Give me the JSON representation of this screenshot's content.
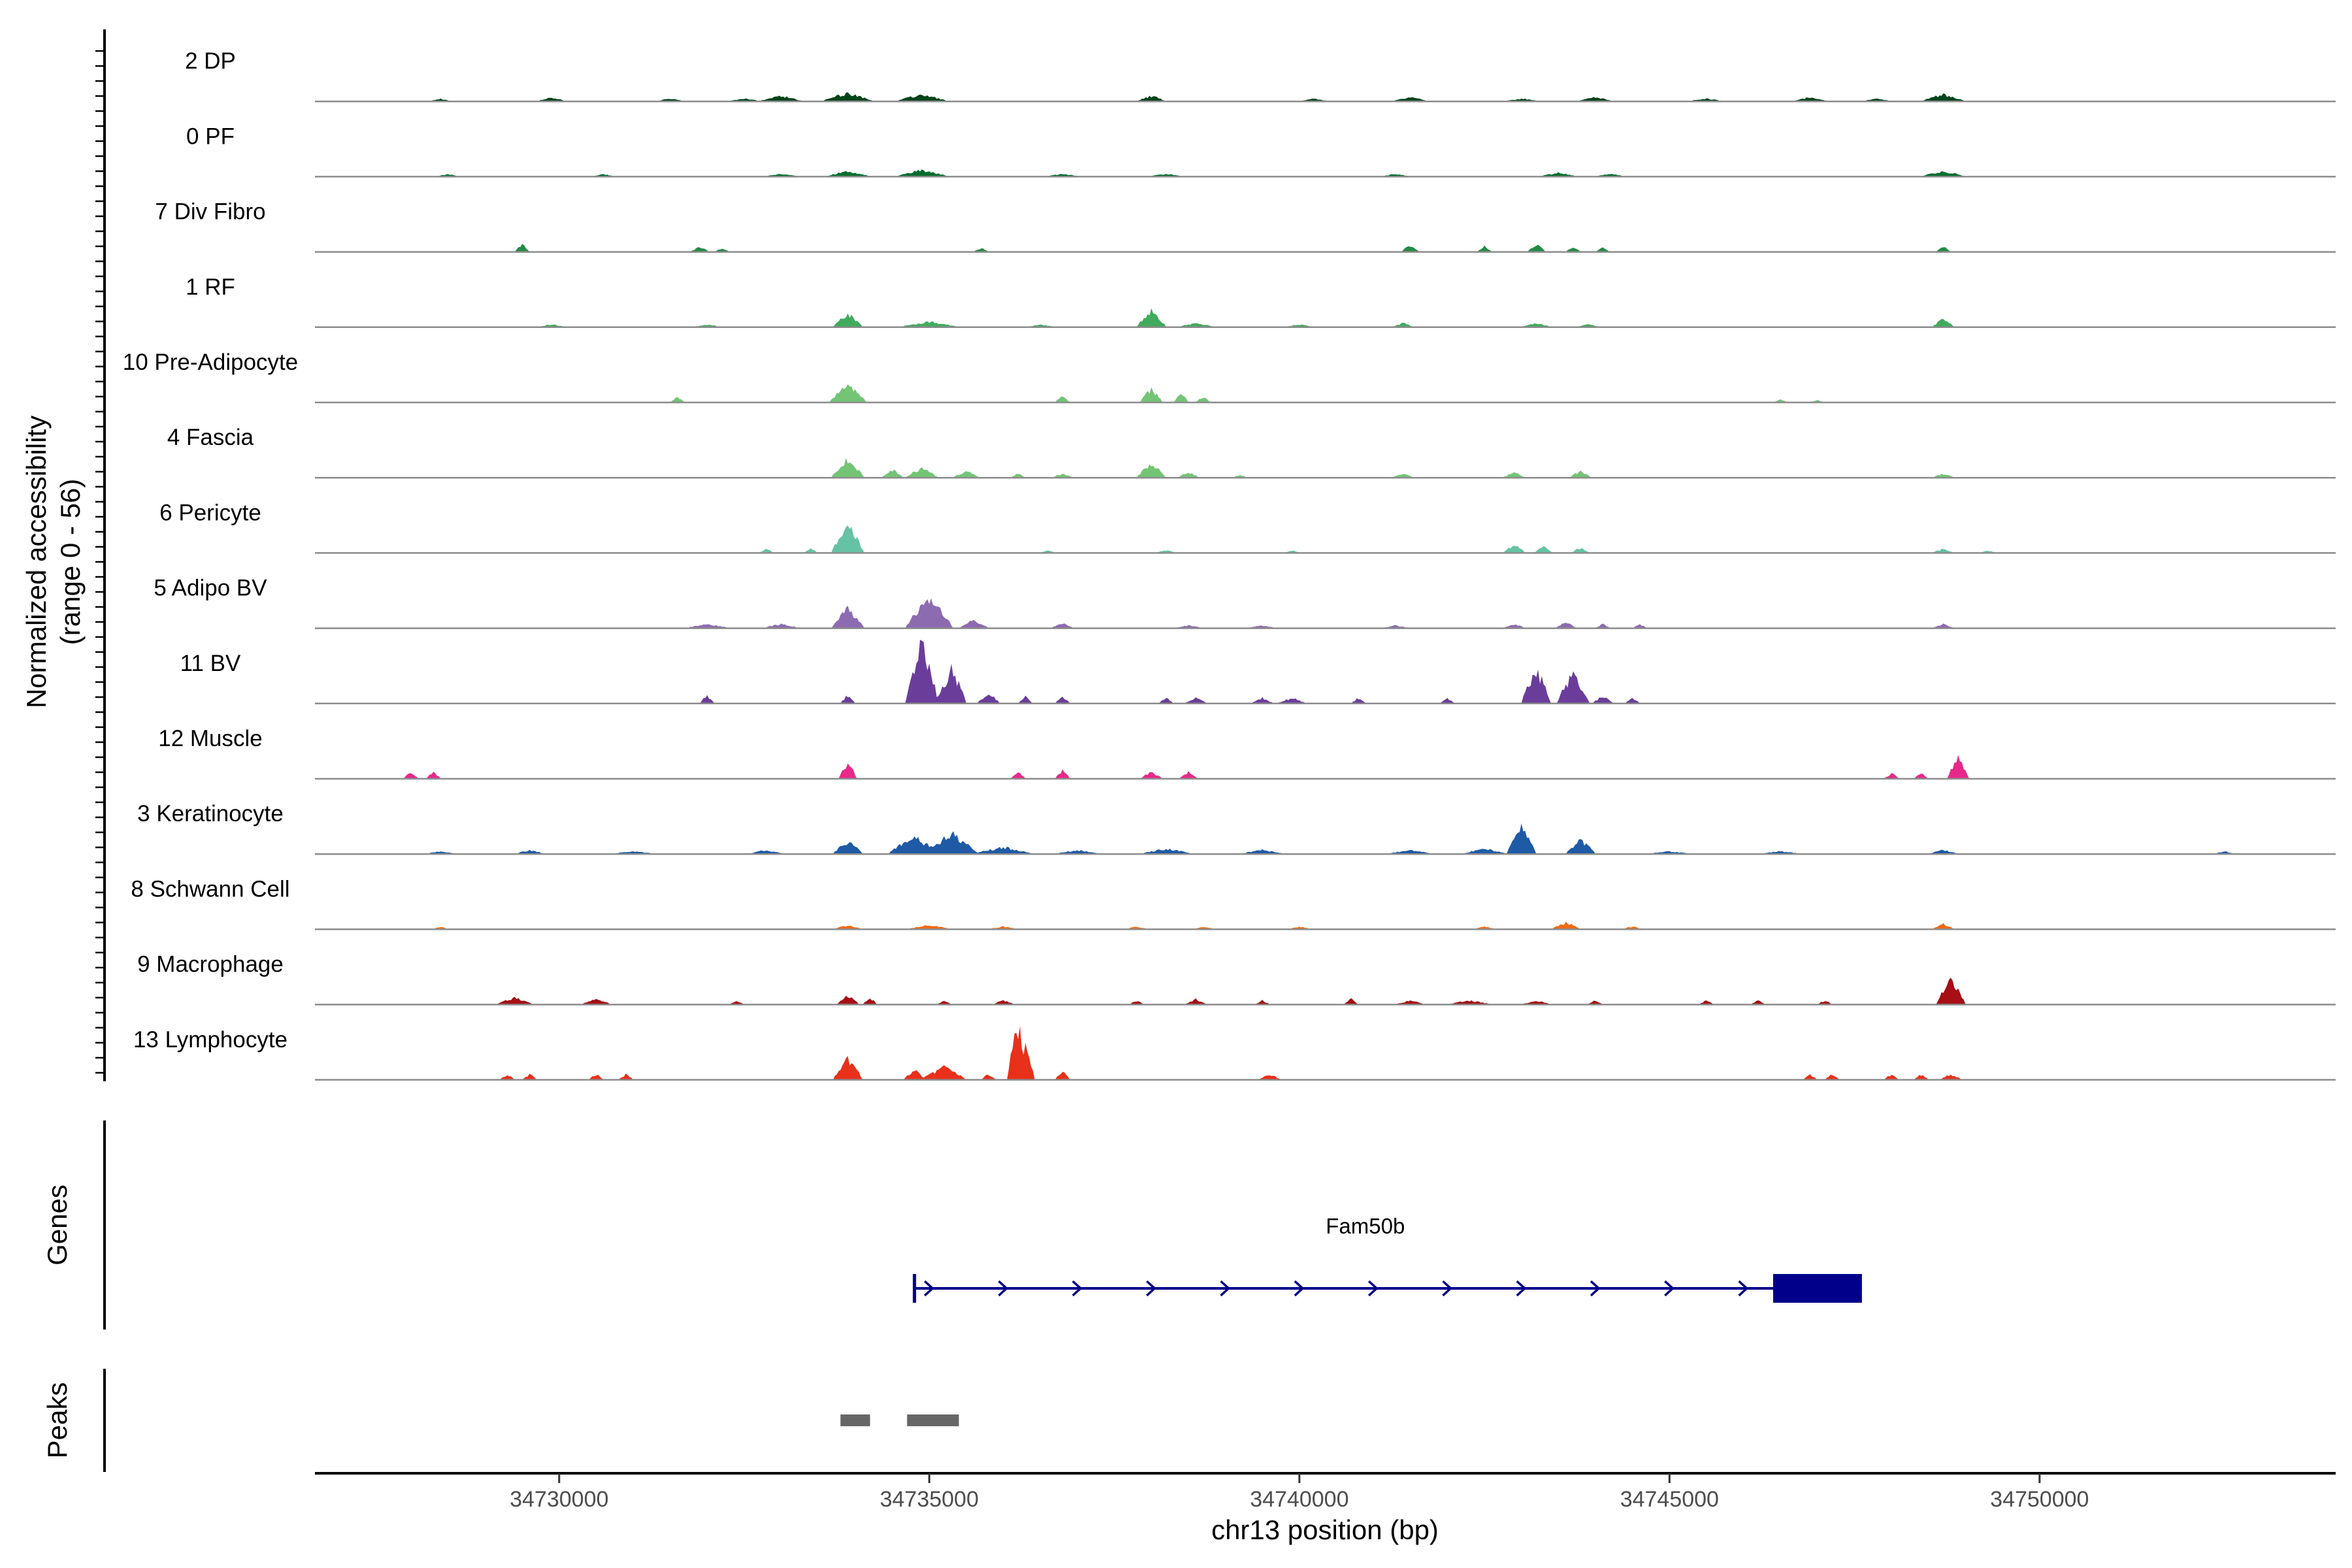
{
  "chart_data": {
    "type": "area",
    "chromosome": "chr13",
    "xlabel": "chr13 position (bp)",
    "ylabel_lines": [
      "Normalized accessibility",
      "(range 0 - 56)"
    ],
    "y_range": [
      0,
      56
    ],
    "xlim": [
      34726700,
      34754000
    ],
    "x_ticks": [
      34730000,
      34735000,
      34740000,
      34745000,
      34750000
    ],
    "x_tick_labels": [
      "34730000",
      "34735000",
      "34740000",
      "34745000",
      "34750000"
    ],
    "tracks": [
      {
        "name": "2 DP",
        "color": "#00441b",
        "peaks": [
          [
            34728400,
            150,
            2
          ],
          [
            34729900,
            200,
            3
          ],
          [
            34731500,
            200,
            2
          ],
          [
            34732500,
            250,
            2
          ],
          [
            34733000,
            300,
            4
          ],
          [
            34733900,
            350,
            6
          ],
          [
            34734900,
            350,
            5
          ],
          [
            34738000,
            200,
            4
          ],
          [
            34740200,
            200,
            2
          ],
          [
            34741500,
            250,
            3
          ],
          [
            34743000,
            250,
            2
          ],
          [
            34744000,
            250,
            3
          ],
          [
            34745500,
            250,
            2
          ],
          [
            34746900,
            250,
            3
          ],
          [
            34747800,
            200,
            2
          ],
          [
            34748700,
            300,
            5
          ]
        ]
      },
      {
        "name": "0 PF",
        "color": "#006d2c",
        "peaks": [
          [
            34728500,
            150,
            2
          ],
          [
            34730600,
            150,
            2
          ],
          [
            34733000,
            250,
            2
          ],
          [
            34733900,
            300,
            4
          ],
          [
            34734900,
            350,
            5
          ],
          [
            34736800,
            250,
            2
          ],
          [
            34738200,
            250,
            2
          ],
          [
            34741300,
            200,
            2
          ],
          [
            34743500,
            250,
            3
          ],
          [
            34744200,
            200,
            2
          ],
          [
            34748700,
            300,
            4
          ]
        ]
      },
      {
        "name": "7 Div Fibro",
        "color": "#238b45",
        "peaks": [
          [
            34729500,
            100,
            6
          ],
          [
            34731900,
            120,
            4
          ],
          [
            34732200,
            100,
            3
          ],
          [
            34735700,
            100,
            3
          ],
          [
            34741500,
            120,
            5
          ],
          [
            34742500,
            100,
            4
          ],
          [
            34743200,
            120,
            6
          ],
          [
            34743700,
            100,
            4
          ],
          [
            34744100,
            100,
            3
          ],
          [
            34748700,
            100,
            4
          ]
        ]
      },
      {
        "name": "1 RF",
        "color": "#41ab5d",
        "peaks": [
          [
            34729900,
            200,
            2
          ],
          [
            34732000,
            200,
            2
          ],
          [
            34733900,
            200,
            10
          ],
          [
            34735000,
            400,
            4
          ],
          [
            34736500,
            200,
            2
          ],
          [
            34738000,
            200,
            12
          ],
          [
            34738600,
            250,
            3
          ],
          [
            34740000,
            200,
            2
          ],
          [
            34741400,
            150,
            3
          ],
          [
            34743200,
            200,
            3
          ],
          [
            34743900,
            150,
            2
          ],
          [
            34748700,
            150,
            6
          ]
        ]
      },
      {
        "name": "10 Pre-Adipocyte",
        "color": "#74c476",
        "peaks": [
          [
            34731600,
            100,
            4
          ],
          [
            34733900,
            250,
            13
          ],
          [
            34736800,
            100,
            5
          ],
          [
            34738000,
            150,
            10
          ],
          [
            34738400,
            100,
            7
          ],
          [
            34738700,
            100,
            4
          ],
          [
            34746500,
            100,
            2
          ],
          [
            34747000,
            100,
            2
          ]
        ]
      },
      {
        "name": "4 Fascia",
        "color": "#74c476",
        "peaks": [
          [
            34733900,
            220,
            14
          ],
          [
            34734500,
            150,
            6
          ],
          [
            34734900,
            220,
            7
          ],
          [
            34735500,
            180,
            5
          ],
          [
            34736200,
            100,
            3
          ],
          [
            34736800,
            150,
            3
          ],
          [
            34738000,
            200,
            10
          ],
          [
            34738500,
            150,
            4
          ],
          [
            34739200,
            100,
            2
          ],
          [
            34741400,
            150,
            3
          ],
          [
            34742900,
            150,
            4
          ],
          [
            34743800,
            150,
            5
          ],
          [
            34748700,
            150,
            3
          ]
        ]
      },
      {
        "name": "6 Pericyte",
        "color": "#66c2a4",
        "peaks": [
          [
            34732800,
            100,
            3
          ],
          [
            34733400,
            100,
            3
          ],
          [
            34733900,
            220,
            20
          ],
          [
            34736600,
            100,
            2
          ],
          [
            34738200,
            150,
            2
          ],
          [
            34739900,
            100,
            2
          ],
          [
            34742900,
            150,
            6
          ],
          [
            34743300,
            120,
            5
          ],
          [
            34743800,
            120,
            4
          ],
          [
            34748700,
            150,
            3
          ],
          [
            34749300,
            100,
            2
          ]
        ]
      },
      {
        "name": "5 Adipo BV",
        "color": "#8c6bb1",
        "peaks": [
          [
            34732000,
            300,
            3
          ],
          [
            34733000,
            250,
            3
          ],
          [
            34733900,
            220,
            15
          ],
          [
            34735000,
            320,
            22
          ],
          [
            34735600,
            200,
            6
          ],
          [
            34736800,
            150,
            4
          ],
          [
            34738500,
            200,
            2
          ],
          [
            34739500,
            200,
            2
          ],
          [
            34741300,
            200,
            2
          ],
          [
            34742900,
            150,
            3
          ],
          [
            34743600,
            150,
            4
          ],
          [
            34744100,
            100,
            3
          ],
          [
            34744600,
            100,
            3
          ],
          [
            34748700,
            150,
            3
          ]
        ]
      },
      {
        "name": "11 BV",
        "color": "#6a3d9a",
        "peaks": [
          [
            34732000,
            100,
            6
          ],
          [
            34733900,
            100,
            6
          ],
          [
            34734900,
            220,
            45
          ],
          [
            34735300,
            200,
            25
          ],
          [
            34735800,
            150,
            8
          ],
          [
            34736300,
            100,
            5
          ],
          [
            34736800,
            100,
            5
          ],
          [
            34738200,
            100,
            4
          ],
          [
            34738600,
            150,
            4
          ],
          [
            34739500,
            150,
            4
          ],
          [
            34739900,
            200,
            4
          ],
          [
            34740800,
            100,
            4
          ],
          [
            34742000,
            100,
            4
          ],
          [
            34743200,
            200,
            25
          ],
          [
            34743700,
            220,
            22
          ],
          [
            34744100,
            150,
            5
          ],
          [
            34744500,
            100,
            4
          ]
        ]
      },
      {
        "name": "12 Muscle",
        "color": "#e7298a",
        "peaks": [
          [
            34728000,
            100,
            5
          ],
          [
            34728300,
            100,
            5
          ],
          [
            34733900,
            120,
            12
          ],
          [
            34736200,
            100,
            5
          ],
          [
            34736800,
            100,
            6
          ],
          [
            34738000,
            150,
            5
          ],
          [
            34738500,
            120,
            5
          ],
          [
            34748000,
            100,
            4
          ],
          [
            34748400,
            100,
            4
          ],
          [
            34748900,
            150,
            15
          ]
        ]
      },
      {
        "name": "3 Keratinocyte",
        "color": "#1f5aa6",
        "peaks": [
          [
            34728400,
            200,
            2
          ],
          [
            34729600,
            200,
            3
          ],
          [
            34731000,
            300,
            2
          ],
          [
            34732800,
            250,
            3
          ],
          [
            34733900,
            200,
            9
          ],
          [
            34734800,
            350,
            12
          ],
          [
            34735300,
            350,
            15
          ],
          [
            34736000,
            400,
            5
          ],
          [
            34737000,
            300,
            3
          ],
          [
            34738200,
            350,
            4
          ],
          [
            34739500,
            300,
            3
          ],
          [
            34741500,
            300,
            3
          ],
          [
            34742500,
            300,
            4
          ],
          [
            34743000,
            200,
            20
          ],
          [
            34743800,
            200,
            10
          ],
          [
            34745000,
            300,
            2
          ],
          [
            34746500,
            300,
            2
          ],
          [
            34748700,
            200,
            3
          ],
          [
            34752500,
            150,
            2
          ]
        ]
      },
      {
        "name": "8 Schwann Cell",
        "color": "#f16913",
        "peaks": [
          [
            34728400,
            100,
            2
          ],
          [
            34733900,
            200,
            3
          ],
          [
            34735000,
            300,
            3
          ],
          [
            34736000,
            200,
            2
          ],
          [
            34737800,
            150,
            2
          ],
          [
            34738700,
            150,
            2
          ],
          [
            34740000,
            150,
            2
          ],
          [
            34742500,
            150,
            2
          ],
          [
            34743600,
            200,
            5
          ],
          [
            34744500,
            150,
            2
          ],
          [
            34748700,
            150,
            4
          ]
        ]
      },
      {
        "name": "9 Macrophage",
        "color": "#a50f15",
        "peaks": [
          [
            34729400,
            250,
            5
          ],
          [
            34730500,
            200,
            4
          ],
          [
            34732400,
            100,
            3
          ],
          [
            34733900,
            150,
            7
          ],
          [
            34734200,
            100,
            5
          ],
          [
            34735200,
            100,
            3
          ],
          [
            34736000,
            150,
            3
          ],
          [
            34737800,
            100,
            3
          ],
          [
            34738600,
            150,
            4
          ],
          [
            34739500,
            100,
            3
          ],
          [
            34740700,
            100,
            4
          ],
          [
            34741500,
            200,
            3
          ],
          [
            34742300,
            300,
            3
          ],
          [
            34743200,
            200,
            3
          ],
          [
            34744000,
            100,
            3
          ],
          [
            34745500,
            100,
            3
          ],
          [
            34746200,
            100,
            3
          ],
          [
            34747100,
            100,
            3
          ],
          [
            34748800,
            200,
            18
          ]
        ]
      },
      {
        "name": "13 Lymphocyte",
        "color": "#e8301a",
        "peaks": [
          [
            34729300,
            100,
            4
          ],
          [
            34729600,
            100,
            4
          ],
          [
            34730500,
            100,
            4
          ],
          [
            34730900,
            100,
            4
          ],
          [
            34733900,
            200,
            15
          ],
          [
            34734800,
            150,
            7
          ],
          [
            34735200,
            300,
            9
          ],
          [
            34735800,
            100,
            4
          ],
          [
            34736200,
            150,
            40
          ],
          [
            34736300,
            120,
            28
          ],
          [
            34736800,
            100,
            7
          ],
          [
            34739600,
            150,
            4
          ],
          [
            34746900,
            100,
            4
          ],
          [
            34747200,
            100,
            4
          ],
          [
            34748000,
            100,
            4
          ],
          [
            34748400,
            100,
            4
          ],
          [
            34748800,
            150,
            4
          ]
        ]
      }
    ],
    "gene": {
      "name": "Fam50b",
      "strand": "+",
      "start": 34734800,
      "end": 34747600,
      "thick_start": 34746400,
      "thick_end": 34747600,
      "color": "#00008b"
    },
    "peak_regions": [
      [
        34733800,
        34734200
      ],
      [
        34734700,
        34735400
      ]
    ],
    "peak_color": "#666666",
    "panel_titles": {
      "genes": "Genes",
      "peaks": "Peaks"
    }
  }
}
